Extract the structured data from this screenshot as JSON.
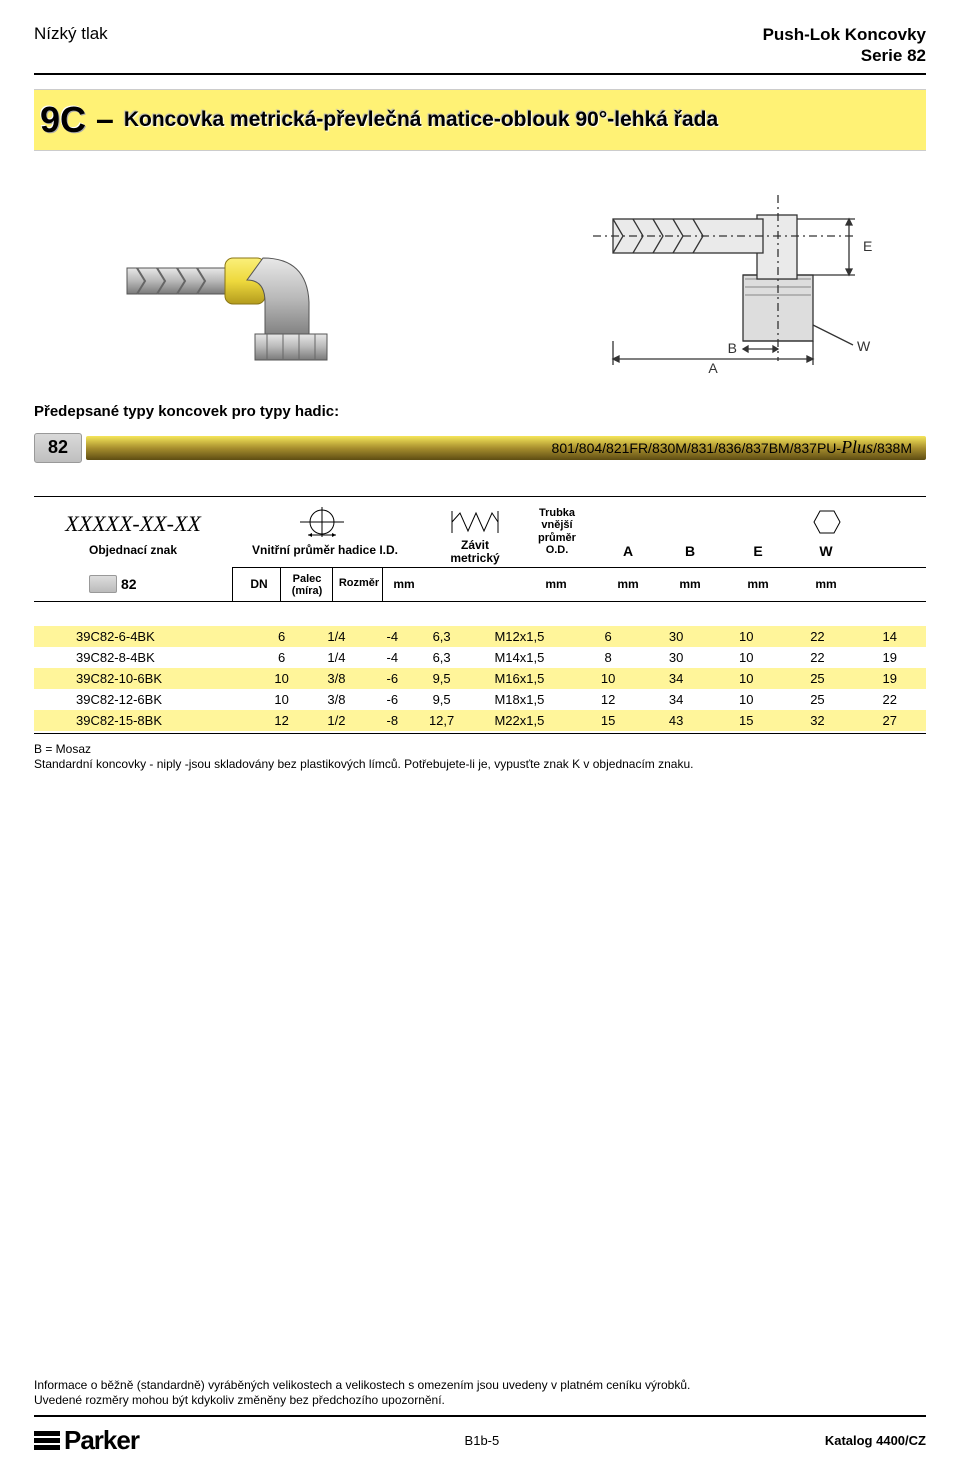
{
  "header": {
    "top_left": "Nízký tlak",
    "top_right_line1": "Push-Lok Koncovky",
    "top_right_line2": "Serie 82"
  },
  "title": {
    "code": "9C",
    "dash": "–",
    "text": "Koncovka metrická-převlečná matice-oblouk 90°-lehká řada"
  },
  "prescribed_label": "Předepsané typy koncovek pro typy hadic:",
  "hose_bar": {
    "series": "82",
    "compat_prefix": "801/804/821FR/830M/831/836/837BM/837PU-",
    "plus": "Plus",
    "compat_suffix": "/838M"
  },
  "headers": {
    "xxxx": "XXXXX-XX-XX",
    "objednaci": "Objednací znak",
    "vnitrni": "Vnitřní průměr hadice I.D.",
    "dn": "DN",
    "palec1": "Palec",
    "palec2": "(míra)",
    "rozmer": "Rozměr",
    "mm1": "mm",
    "zavit1": "Závit",
    "zavit2": "metrický",
    "trubka1": "Trubka",
    "trubka2": "vnější",
    "trubka3": "průměr",
    "trubka4": "O.D.",
    "A": "A",
    "B": "B",
    "E": "E",
    "W": "W",
    "mm_od": "mm",
    "mm_a": "mm",
    "mm_b": "mm",
    "mm_e": "mm",
    "mm_w": "mm",
    "sub82": "82"
  },
  "table": {
    "columns_widths": [
      "202",
      "48",
      "52",
      "50",
      "40",
      "102",
      "60",
      "64",
      "64",
      "66",
      "66"
    ],
    "row_shade_color": "#fff59a",
    "rows": [
      {
        "part": "39C82-6-4BK",
        "dn": "6",
        "palec": "1/4",
        "rozmer": "-4",
        "mm": "6,3",
        "thread": "M12x1,5",
        "od": "6",
        "a": "30",
        "b": "10",
        "e": "22",
        "w": "14",
        "shade": true
      },
      {
        "part": "39C82-8-4BK",
        "dn": "6",
        "palec": "1/4",
        "rozmer": "-4",
        "mm": "6,3",
        "thread": "M14x1,5",
        "od": "8",
        "a": "30",
        "b": "10",
        "e": "22",
        "w": "19",
        "shade": false
      },
      {
        "part": "39C82-10-6BK",
        "dn": "10",
        "palec": "3/8",
        "rozmer": "-6",
        "mm": "9,5",
        "thread": "M16x1,5",
        "od": "10",
        "a": "34",
        "b": "10",
        "e": "25",
        "w": "19",
        "shade": true
      },
      {
        "part": "39C82-12-6BK",
        "dn": "10",
        "palec": "3/8",
        "rozmer": "-6",
        "mm": "9,5",
        "thread": "M18x1,5",
        "od": "12",
        "a": "34",
        "b": "10",
        "e": "25",
        "w": "22",
        "shade": false
      },
      {
        "part": "39C82-15-8BK",
        "dn": "12",
        "palec": "1/2",
        "rozmer": "-8",
        "mm": "12,7",
        "thread": "M22x1,5",
        "od": "15",
        "a": "43",
        "b": "15",
        "e": "32",
        "w": "27",
        "shade": true
      }
    ]
  },
  "notes": {
    "line1": "B = Mosaz",
    "line2": "Standardní koncovky - niply -jsou skladovány bez plastikových límců. Potřebujete-li je, vypusťte znak K v objednacím znaku."
  },
  "footer": {
    "info1": "Informace o běžně (standardně) vyráběných velikostech a velikostech s omezením jsou uvedeny v platném ceníku výrobků.",
    "info2": "Uvedené rozměry mohou být kdykoliv změněny bez předchozího upozornění.",
    "page_num": "B1b-5",
    "katalog": "Katalog 4400/CZ",
    "logo_text": "Parker"
  },
  "diagram": {
    "labels": {
      "A": "A",
      "B": "B",
      "E": "E",
      "W": "W"
    },
    "colors": {
      "band_yellow": "#fff275",
      "metal_light": "#d0d0d0",
      "metal_dark": "#888888",
      "outline": "#4a4a4a",
      "highlight_yellow": "#f3e24b"
    }
  }
}
